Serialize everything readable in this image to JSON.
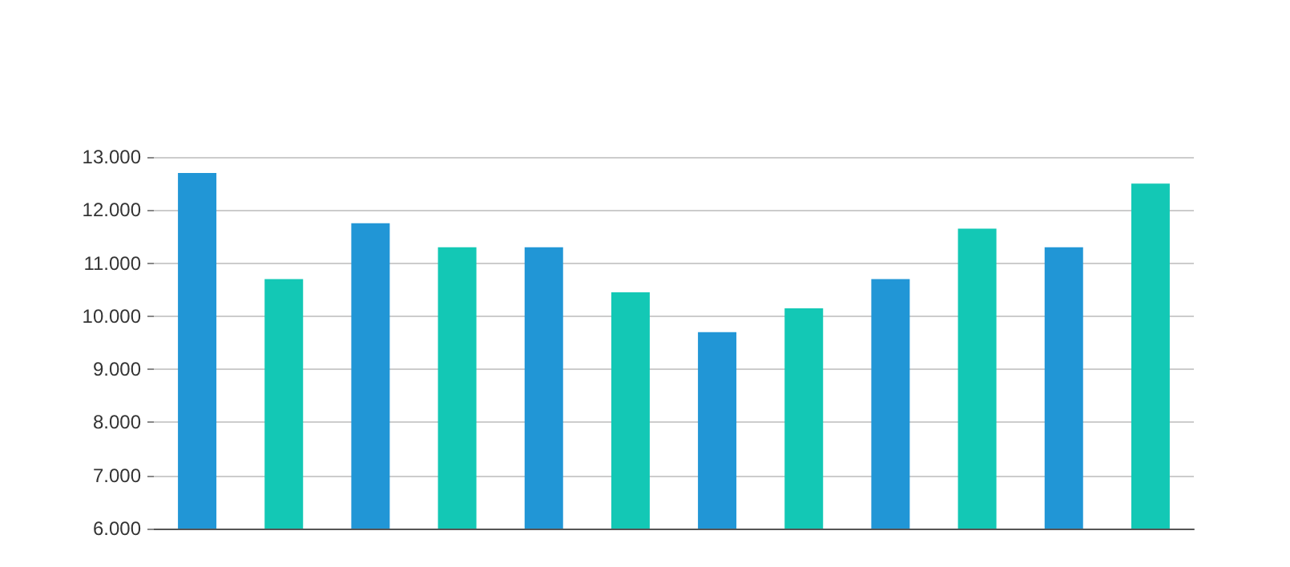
{
  "chart_data": {
    "type": "bar",
    "categories": [
      null,
      null,
      null,
      null,
      null,
      null,
      null,
      null,
      null,
      null,
      null,
      null
    ],
    "values": [
      12700,
      10700,
      11750,
      11300,
      11300,
      10450,
      9700,
      10150,
      10700,
      11650,
      11300,
      12500
    ],
    "colors": [
      "#2196d6",
      "#13c8b5",
      "#2196d6",
      "#13c8b5",
      "#2196d6",
      "#13c8b5",
      "#2196d6",
      "#13c8b5",
      "#2196d6",
      "#13c8b5",
      "#2196d6",
      "#13c8b5"
    ],
    "ylim": [
      6000,
      13000
    ],
    "yticks": [
      {
        "value": 6000,
        "label": "6.000"
      },
      {
        "value": 7000,
        "label": "7.000"
      },
      {
        "value": 8000,
        "label": "8.000"
      },
      {
        "value": 9000,
        "label": "9.000"
      },
      {
        "value": 10000,
        "label": "10.000"
      },
      {
        "value": 11000,
        "label": "11.000"
      },
      {
        "value": 12000,
        "label": "12.000"
      },
      {
        "value": 13000,
        "label": "13.000"
      }
    ],
    "grid": "y"
  }
}
